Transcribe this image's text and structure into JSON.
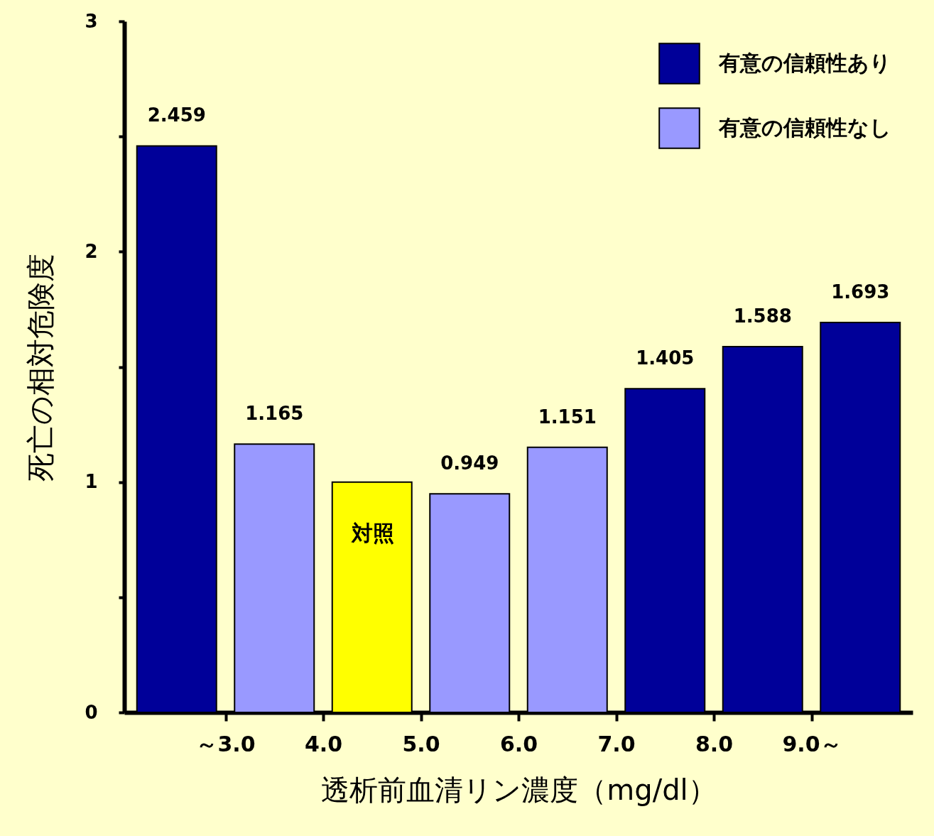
{
  "chart_data": {
    "type": "bar",
    "xlabel": "透析前血清リン濃度（mg/dl）",
    "ylabel": "死亡の相対危険度",
    "x": [
      2.5,
      3.5,
      4.5,
      5.5,
      6.5,
      7.5,
      8.5,
      9.5
    ],
    "xlim": [
      2,
      10
    ],
    "xticks": [
      {
        "value": 3,
        "label": "～3.0"
      },
      {
        "value": 4,
        "label": "4.0"
      },
      {
        "value": 5,
        "label": "5.0"
      },
      {
        "value": 6,
        "label": "6.0"
      },
      {
        "value": 7,
        "label": "7.0"
      },
      {
        "value": 8,
        "label": "8.0"
      },
      {
        "value": 9,
        "label": "9.0～"
      }
    ],
    "ylim": [
      0,
      3
    ],
    "yticks": [
      0,
      {
        "value": 0.5,
        "label": null
      },
      1,
      {
        "value": 1.5,
        "label": null
      },
      2,
      {
        "value": 2.5,
        "label": null
      },
      3
    ],
    "series": [
      {
        "name": "有意の信頼性あり",
        "color": "#000099",
        "values": [
          2.459,
          null,
          null,
          null,
          null,
          1.405,
          1.588,
          1.693
        ],
        "value_labels": [
          "2.459",
          null,
          null,
          null,
          null,
          "1.405",
          "1.588",
          "1.693"
        ]
      },
      {
        "name": "有意の信頼性なし",
        "color": "#9999ff",
        "values": [
          null,
          1.165,
          null,
          0.949,
          1.151,
          null,
          null,
          null
        ],
        "value_labels": [
          null,
          "1.165",
          null,
          "0.949",
          "1.151",
          null,
          null,
          null
        ]
      },
      {
        "color": "#ffff00",
        "values": [
          null,
          null,
          1.0,
          null,
          null,
          null,
          null,
          null
        ]
      }
    ],
    "annotations": [
      "対照"
    ],
    "legend": "top right",
    "grid": false
  }
}
